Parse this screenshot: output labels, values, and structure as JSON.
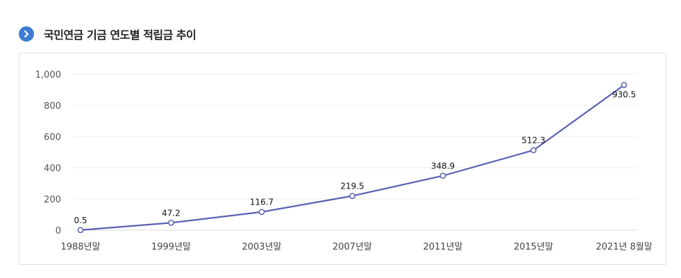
{
  "header": {
    "title": "국민연금 기금 연도별 적립금 추이",
    "icon": "chevron-right-icon"
  },
  "colors": {
    "accent": "#3d7dd1",
    "line": "#5b5fb3",
    "grid": "#ececec"
  },
  "chart_data": {
    "type": "line",
    "title": "국민연금 기금 연도별 적립금 추이",
    "xlabel": "",
    "ylabel": "",
    "categories": [
      "1988년말",
      "1999년말",
      "2003년말",
      "2007년말",
      "2011년말",
      "2015년말",
      "2021년 8월말"
    ],
    "series": [
      {
        "values": [
          0.5,
          47.2,
          116.7,
          219.5,
          348.9,
          512.3,
          930.5
        ]
      }
    ],
    "data_labels": [
      "0.5",
      "47.2",
      "116.7",
      "219.5",
      "348.9",
      "512.3",
      "930.5"
    ],
    "ylim": [
      0,
      1000
    ],
    "yticks": [
      0,
      200,
      400,
      600,
      800,
      1000
    ],
    "ytick_labels": [
      "0",
      "200",
      "400",
      "600",
      "800",
      "1,000"
    ],
    "grid": true,
    "legend": "none"
  }
}
